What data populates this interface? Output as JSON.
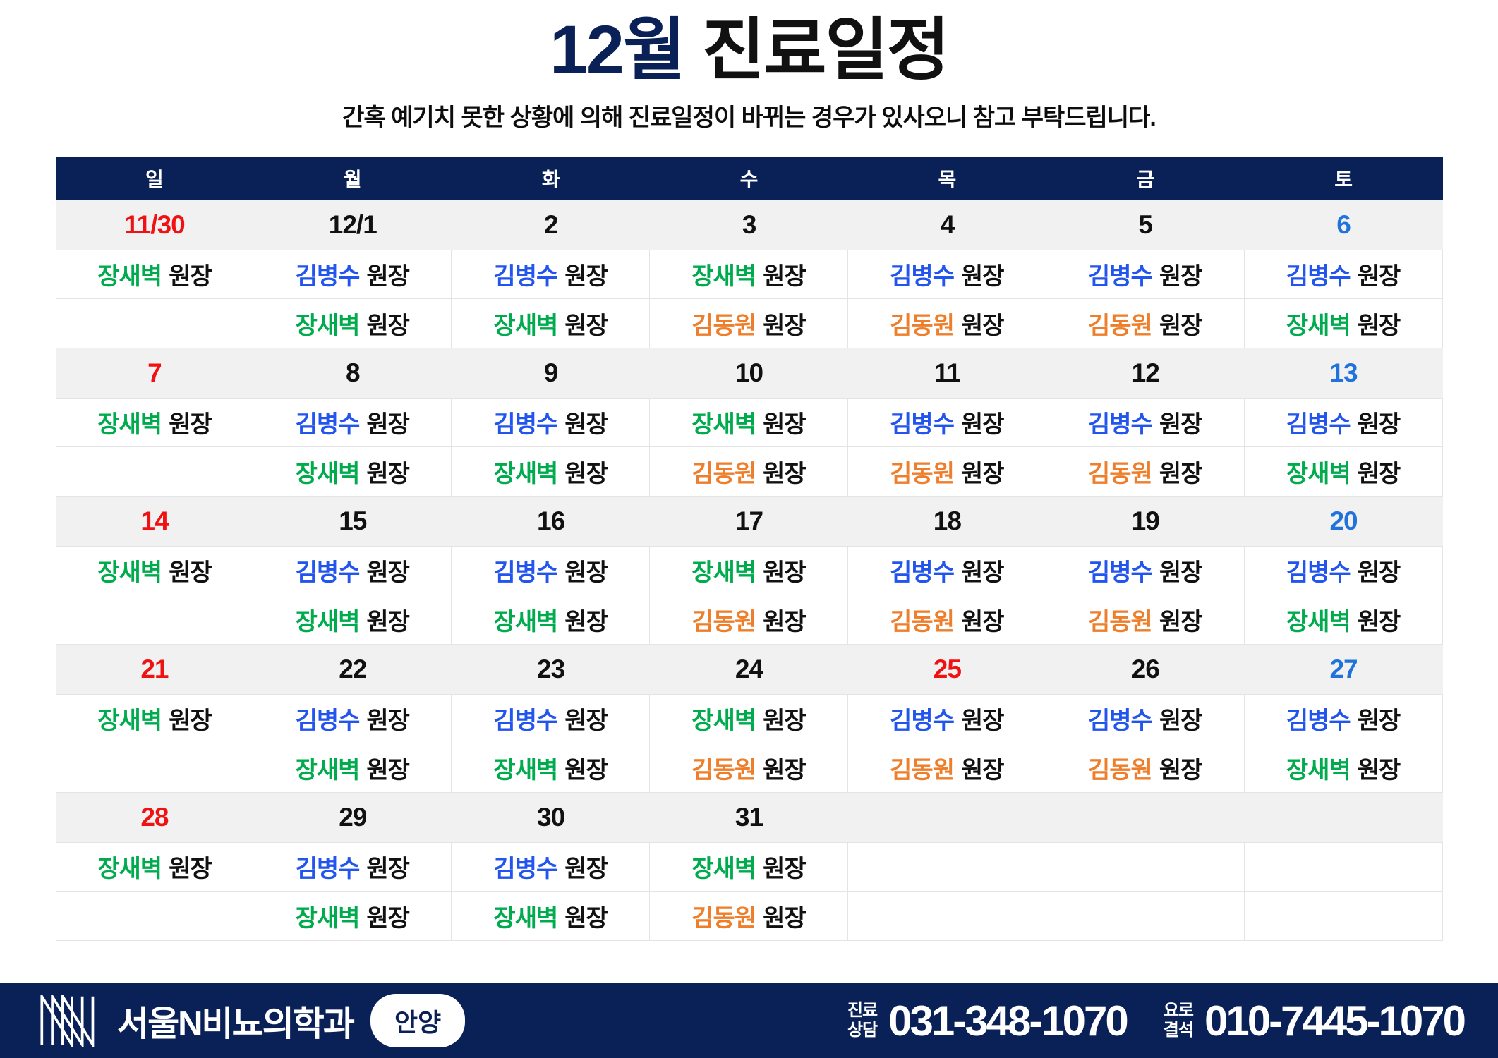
{
  "title": {
    "month": "12월",
    "rest": " 진료일정"
  },
  "subtitle": "간혹 예기치 못한 상황에 의해 진료일정이 바뀌는 경우가 있사오니 참고 부탁드립니다.",
  "colors": {
    "navy": "#0a2158",
    "holiday_red": "#f01212",
    "saturday_blue": "#2173dc",
    "doctor_green": "#00ab4e",
    "doctor_blue": "#2254ee",
    "doctor_orange": "#ee7e2a",
    "date_row_bg": "#f1f1f2",
    "cell_border": "#e4e4e6"
  },
  "calendar": {
    "day_headers": [
      "일",
      "월",
      "화",
      "수",
      "목",
      "금",
      "토"
    ],
    "doctor_suffix": "원장",
    "doctor_colors": {
      "장새벽": "green",
      "김병수": "blue",
      "김동원": "orange"
    },
    "weeks": [
      {
        "dates": [
          {
            "label": "11/30",
            "type": "holiday"
          },
          {
            "label": "12/1",
            "type": "normal"
          },
          {
            "label": "2",
            "type": "normal"
          },
          {
            "label": "3",
            "type": "normal"
          },
          {
            "label": "4",
            "type": "normal"
          },
          {
            "label": "5",
            "type": "normal"
          },
          {
            "label": "6",
            "type": "saturday"
          }
        ],
        "row1": [
          "장새벽",
          "김병수",
          "김병수",
          "장새벽",
          "김병수",
          "김병수",
          "김병수"
        ],
        "row2": [
          "",
          "장새벽",
          "장새벽",
          "김동원",
          "김동원",
          "김동원",
          "장새벽"
        ]
      },
      {
        "dates": [
          {
            "label": "7",
            "type": "holiday"
          },
          {
            "label": "8",
            "type": "normal"
          },
          {
            "label": "9",
            "type": "normal"
          },
          {
            "label": "10",
            "type": "normal"
          },
          {
            "label": "11",
            "type": "normal"
          },
          {
            "label": "12",
            "type": "normal"
          },
          {
            "label": "13",
            "type": "saturday"
          }
        ],
        "row1": [
          "장새벽",
          "김병수",
          "김병수",
          "장새벽",
          "김병수",
          "김병수",
          "김병수"
        ],
        "row2": [
          "",
          "장새벽",
          "장새벽",
          "김동원",
          "김동원",
          "김동원",
          "장새벽"
        ]
      },
      {
        "dates": [
          {
            "label": "14",
            "type": "holiday"
          },
          {
            "label": "15",
            "type": "normal"
          },
          {
            "label": "16",
            "type": "normal"
          },
          {
            "label": "17",
            "type": "normal"
          },
          {
            "label": "18",
            "type": "normal"
          },
          {
            "label": "19",
            "type": "normal"
          },
          {
            "label": "20",
            "type": "saturday"
          }
        ],
        "row1": [
          "장새벽",
          "김병수",
          "김병수",
          "장새벽",
          "김병수",
          "김병수",
          "김병수"
        ],
        "row2": [
          "",
          "장새벽",
          "장새벽",
          "김동원",
          "김동원",
          "김동원",
          "장새벽"
        ]
      },
      {
        "dates": [
          {
            "label": "21",
            "type": "holiday"
          },
          {
            "label": "22",
            "type": "normal"
          },
          {
            "label": "23",
            "type": "normal"
          },
          {
            "label": "24",
            "type": "normal"
          },
          {
            "label": "25",
            "type": "holiday"
          },
          {
            "label": "26",
            "type": "normal"
          },
          {
            "label": "27",
            "type": "saturday"
          }
        ],
        "row1": [
          "장새벽",
          "김병수",
          "김병수",
          "장새벽",
          "김병수",
          "김병수",
          "김병수"
        ],
        "row2": [
          "",
          "장새벽",
          "장새벽",
          "김동원",
          "김동원",
          "김동원",
          "장새벽"
        ]
      },
      {
        "dates": [
          {
            "label": "28",
            "type": "holiday"
          },
          {
            "label": "29",
            "type": "normal"
          },
          {
            "label": "30",
            "type": "normal"
          },
          {
            "label": "31",
            "type": "normal"
          },
          {
            "label": "",
            "type": "normal"
          },
          {
            "label": "",
            "type": "normal"
          },
          {
            "label": "",
            "type": "normal"
          }
        ],
        "row1": [
          "장새벽",
          "김병수",
          "김병수",
          "장새벽",
          "",
          "",
          ""
        ],
        "row2": [
          "",
          "장새벽",
          "장새벽",
          "김동원",
          "",
          "",
          ""
        ]
      }
    ]
  },
  "footer": {
    "clinic_name": "서울N비뇨의학과",
    "branch_badge": "안양",
    "phones": [
      {
        "label_lines": [
          "진료",
          "상담"
        ],
        "number": "031-348-1070"
      },
      {
        "label_lines": [
          "요로",
          "결석"
        ],
        "number": "010-7445-1070"
      }
    ]
  }
}
